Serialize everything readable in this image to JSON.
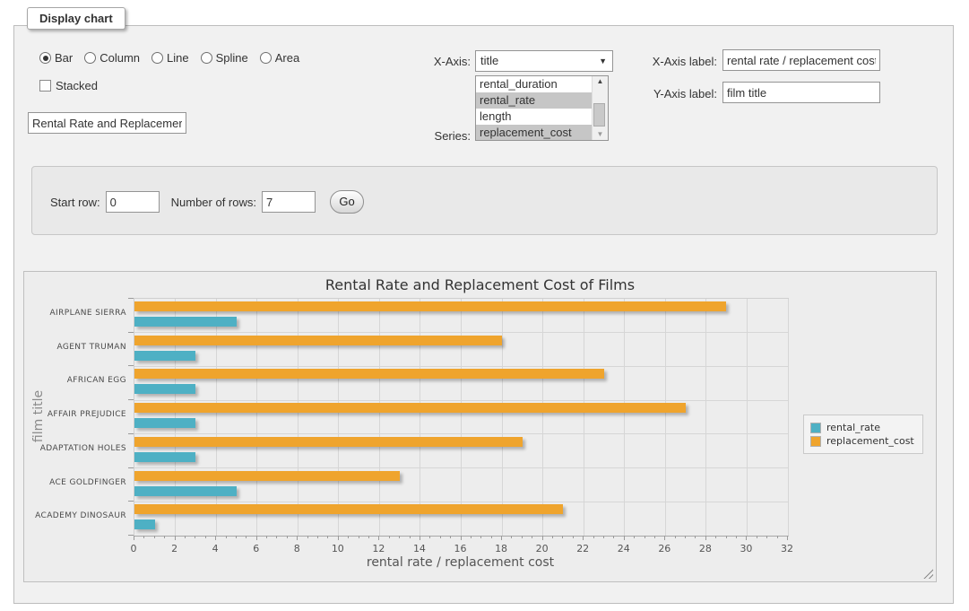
{
  "panel": {
    "title": "Display chart"
  },
  "chart_type": {
    "options": [
      "Bar",
      "Column",
      "Line",
      "Spline",
      "Area"
    ],
    "selected": "Bar"
  },
  "stacked": {
    "label": "Stacked",
    "checked": false
  },
  "chart_title_input": {
    "value": "Rental Rate and Replacemer"
  },
  "x_axis_select": {
    "label": "X-Axis:",
    "selected": "title"
  },
  "series_select": {
    "label": "Series:",
    "options": [
      {
        "label": "rental_duration",
        "selected": false
      },
      {
        "label": "rental_rate",
        "selected": true
      },
      {
        "label": "length",
        "selected": false
      },
      {
        "label": "replacement_cost",
        "selected": true
      }
    ]
  },
  "x_axis_label_input": {
    "label": "X-Axis label:",
    "value": "rental rate / replacement cost"
  },
  "y_axis_label_input": {
    "label": "Y-Axis label:",
    "value": "film title"
  },
  "row_controls": {
    "start_row_label": "Start row:",
    "start_row_value": "0",
    "num_rows_label": "Number of rows:",
    "num_rows_value": "7",
    "go_label": "Go"
  },
  "chart_data": {
    "type": "bar",
    "orientation": "horizontal",
    "title": "Rental Rate and Replacement Cost of Films",
    "categories": [
      "AIRPLANE SIERRA",
      "AGENT TRUMAN",
      "AFRICAN EGG",
      "AFFAIR PREJUDICE",
      "ADAPTATION HOLES",
      "ACE GOLDFINGER",
      "ACADEMY DINOSAUR"
    ],
    "series": [
      {
        "name": "rental_rate",
        "color": "#4EB0C4",
        "values": [
          4.99,
          2.99,
          2.99,
          2.99,
          2.99,
          4.99,
          0.99
        ]
      },
      {
        "name": "replacement_cost",
        "color": "#EFA42D",
        "values": [
          28.99,
          17.99,
          22.99,
          26.99,
          18.99,
          12.99,
          20.99
        ]
      }
    ],
    "xlabel": "rental rate / replacement cost",
    "ylabel": "film title",
    "xlim": [
      0,
      32
    ],
    "xtick_step": 2,
    "x_minor_tick_step": 0.5,
    "grid": true,
    "legend_position": "right"
  }
}
